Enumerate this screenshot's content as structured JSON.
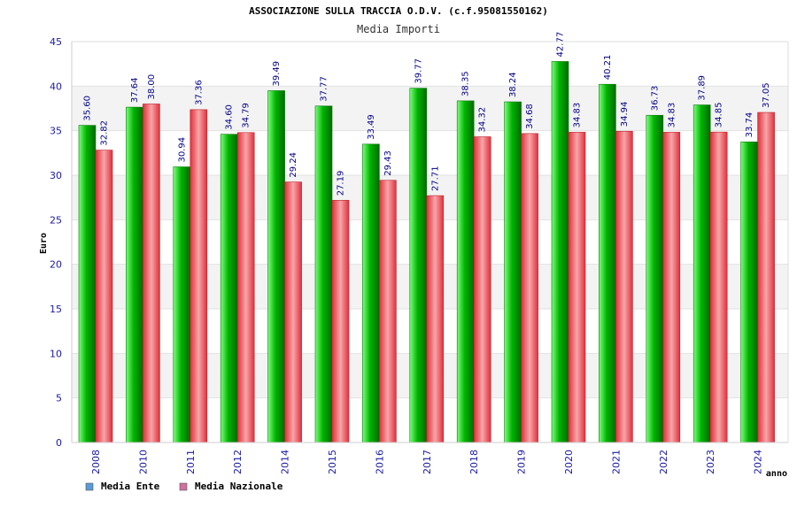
{
  "chart_data": {
    "type": "bar",
    "title": "ASSOCIAZIONE SULLA TRACCIA O.D.V. (c.f.95081550162)",
    "subtitle": "Media Importi",
    "xlabel": "anno",
    "ylabel": "Euro",
    "ylim": [
      0,
      45
    ],
    "yticks": [
      0,
      5,
      10,
      15,
      20,
      25,
      30,
      35,
      40,
      45
    ],
    "grid": true,
    "legend_position": "bottom-left",
    "categories": [
      "2008",
      "2010",
      "2011",
      "2012",
      "2014",
      "2015",
      "2016",
      "2017",
      "2018",
      "2019",
      "2020",
      "2021",
      "2022",
      "2023",
      "2024"
    ],
    "series": [
      {
        "name": "Media Ente",
        "color": "#1aa31a",
        "legend_color": "#5b9bd5",
        "values": [
          35.6,
          37.64,
          30.94,
          34.6,
          39.49,
          37.77,
          33.49,
          39.77,
          38.35,
          38.24,
          42.77,
          40.21,
          36.73,
          37.89,
          33.74
        ],
        "labels": [
          "35.60",
          "37.64",
          "30.94",
          "34.60",
          "39.49",
          "37.77",
          "33.49",
          "39.77",
          "38.35",
          "38.24",
          "42.77",
          "40.21",
          "36.73",
          "37.89",
          "33.74"
        ]
      },
      {
        "name": "Media Nazionale",
        "color": "#e0303a",
        "legend_color": "#d06fa0",
        "values": [
          32.82,
          38.0,
          37.36,
          34.79,
          29.24,
          27.19,
          29.43,
          27.71,
          34.32,
          34.68,
          34.83,
          34.94,
          34.83,
          34.85,
          37.05
        ],
        "labels": [
          "32.82",
          "38.00",
          "37.36",
          "34.79",
          "29.24",
          "27.19",
          "29.43",
          "27.71",
          "34.32",
          "34.68",
          "34.83",
          "34.94",
          "34.83",
          "34.85",
          "37.05"
        ]
      }
    ]
  }
}
